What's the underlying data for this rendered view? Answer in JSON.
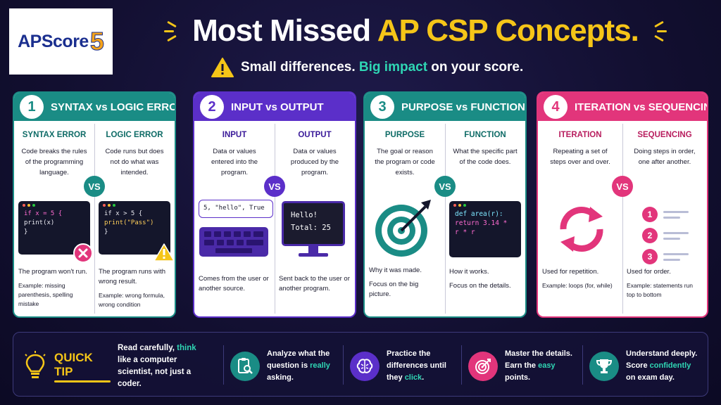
{
  "logo": {
    "text": "APScore",
    "five": "5"
  },
  "header": {
    "title_plain": "Most Missed ",
    "title_highlight": "AP CSP Concepts.",
    "subtitle_plain1": "Small differences. ",
    "subtitle_highlight": "Big impact",
    "subtitle_plain2": " on your score."
  },
  "colors": {
    "teal": "#1a8c85",
    "purple": "#5b2fc9",
    "pink": "#e2357b",
    "yellow": "#f5c518",
    "accent": "#2fd6b4"
  },
  "cards": [
    {
      "number": "1",
      "title": "SYNTAX vs LOGIC ERRORS",
      "vs": "VS",
      "left": {
        "title": "SYNTAX ERROR",
        "desc": "Code breaks the rules of the programming language.",
        "code": [
          "if x = 5 {",
          "  print(x)",
          "}"
        ],
        "foot": "The program won't run.",
        "example": "Example: missing parenthesis, spelling mistake"
      },
      "right": {
        "title": "LOGIC ERROR",
        "desc": "Code runs but does not do what was intended.",
        "code": [
          "if x > 5 {",
          "  print(\"Pass\")",
          "}"
        ],
        "foot": "The program runs with wrong result.",
        "example": "Example: wrong formula, wrong condition"
      }
    },
    {
      "number": "2",
      "title": "INPUT vs OUTPUT",
      "vs": "VS",
      "left": {
        "title": "INPUT",
        "desc": "Data or values entered into the program.",
        "bubble": "5, \"hello\", True",
        "foot": "Comes from the user or another source."
      },
      "right": {
        "title": "OUTPUT",
        "desc": "Data or values produced by the program.",
        "screen": [
          "Hello!",
          "Total: 25"
        ],
        "foot": "Sent back to the user or another program."
      }
    },
    {
      "number": "3",
      "title": "PURPOSE vs FUNCTION",
      "vs": "VS",
      "left": {
        "title": "PURPOSE",
        "desc": "The goal or reason the program or code exists.",
        "foot": "Why it was made.",
        "foot2": "Focus on the big picture."
      },
      "right": {
        "title": "FUNCTION",
        "desc": "What the specific part of the code does.",
        "code": [
          "def area(r):",
          "  return 3.14 *",
          "  r * r"
        ],
        "foot": "How it works.",
        "foot2": "Focus on the details."
      }
    },
    {
      "number": "4",
      "title": "ITERATION vs SEQUENCING",
      "vs": "VS",
      "left": {
        "title": "ITERATION",
        "desc": "Repeating a set of steps over and over.",
        "foot": "Used for repetition.",
        "example": "Example: loops (for, while)"
      },
      "right": {
        "title": "SEQUENCING",
        "desc": "Doing steps in order, one after another.",
        "steps": [
          "1",
          "2",
          "3"
        ],
        "foot": "Used for order.",
        "example": "Example: statements run top to bottom"
      }
    }
  ],
  "tips": {
    "label": "QUICK TIP",
    "main": {
      "a": "Read carefully, ",
      "hl": "think",
      "b": " like a computer scientist, not just a coder."
    },
    "items": [
      {
        "icon": "clipboard-search-icon",
        "a": "Analyze what the question is ",
        "hl": "really",
        "b": " asking."
      },
      {
        "icon": "brain-icon",
        "a": "Practice the differences until they ",
        "hl": "click",
        "b": "."
      },
      {
        "icon": "target-icon",
        "a": "Master the details. Earn the ",
        "hl": "easy",
        "b": " points."
      },
      {
        "icon": "trophy-icon",
        "a": "Understand deeply. Score ",
        "hl": "confidently",
        "b": " on exam day."
      }
    ]
  }
}
